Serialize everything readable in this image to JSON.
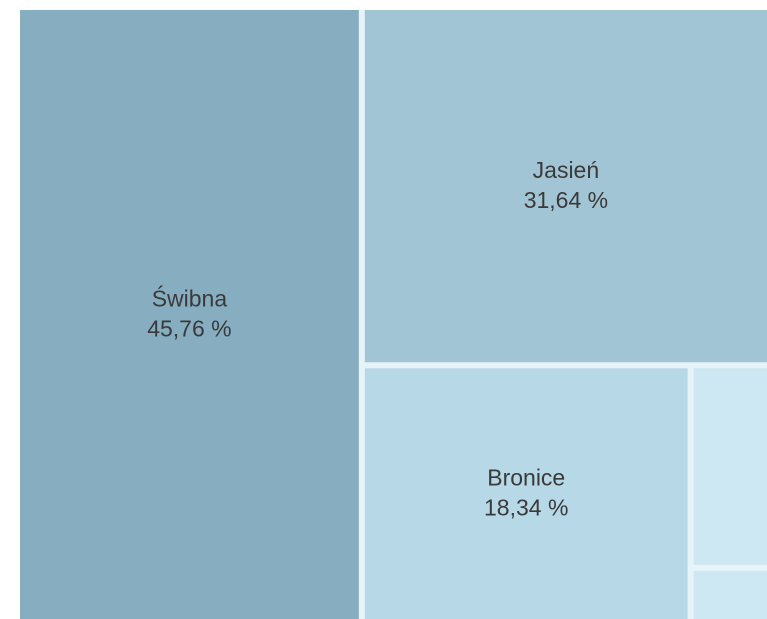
{
  "chart_data": {
    "type": "treemap",
    "categories": [
      "Świbna",
      "Jasień",
      "Bronice",
      null,
      null
    ],
    "values": [
      45.76,
      31.64,
      18.34,
      3.4,
      0.86
    ],
    "value_labels": [
      "45,76 %",
      "31,64 %",
      "18,34 %",
      null,
      null
    ],
    "colors": [
      "#87aec0",
      "#a2c5d5",
      "#b7d9e7",
      "#cde8f3",
      "#cde8f3"
    ]
  }
}
